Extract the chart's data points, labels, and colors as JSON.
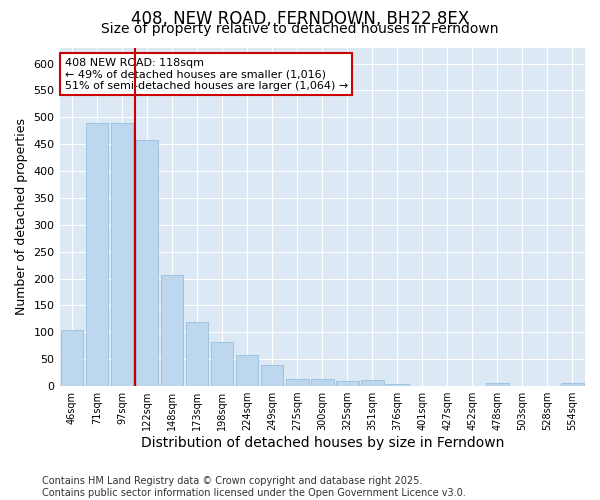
{
  "title": "408, NEW ROAD, FERNDOWN, BH22 8EX",
  "subtitle": "Size of property relative to detached houses in Ferndown",
  "xlabel": "Distribution of detached houses by size in Ferndown",
  "ylabel": "Number of detached properties",
  "footer": "Contains HM Land Registry data © Crown copyright and database right 2025.\nContains public sector information licensed under the Open Government Licence v3.0.",
  "categories": [
    "46sqm",
    "71sqm",
    "97sqm",
    "122sqm",
    "148sqm",
    "173sqm",
    "198sqm",
    "224sqm",
    "249sqm",
    "275sqm",
    "300sqm",
    "325sqm",
    "351sqm",
    "376sqm",
    "401sqm",
    "427sqm",
    "452sqm",
    "478sqm",
    "503sqm",
    "528sqm",
    "554sqm"
  ],
  "values": [
    105,
    490,
    490,
    458,
    207,
    120,
    82,
    57,
    39,
    14,
    14,
    10,
    12,
    3,
    1,
    0,
    0,
    5,
    1,
    0,
    5
  ],
  "bar_color": "#bdd7ee",
  "bar_edge_color": "#9ec4e0",
  "vline_x": 2.5,
  "vline_color": "#cc0000",
  "annotation_text": "408 NEW ROAD: 118sqm\n← 49% of detached houses are smaller (1,016)\n51% of semi-detached houses are larger (1,064) →",
  "annotation_box_color": "#ffffff",
  "annotation_box_edge_color": "#cc0000",
  "ylim": [
    0,
    630
  ],
  "yticks": [
    0,
    50,
    100,
    150,
    200,
    250,
    300,
    350,
    400,
    450,
    500,
    550,
    600
  ],
  "background_color": "#dce9f5",
  "fig_background": "#ffffff",
  "title_fontsize": 12,
  "subtitle_fontsize": 10,
  "axis_label_fontsize": 9,
  "tick_fontsize": 8,
  "footer_fontsize": 7,
  "annot_fontsize": 8
}
